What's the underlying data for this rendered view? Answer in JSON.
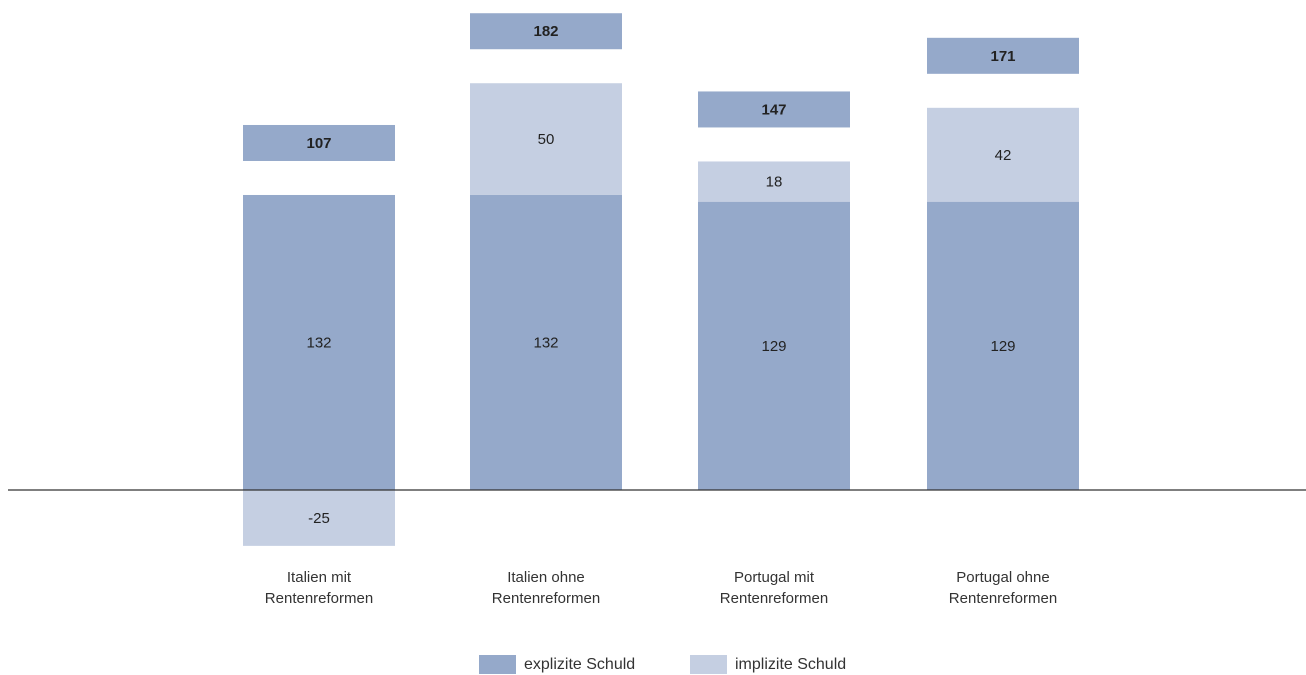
{
  "chart_data": {
    "type": "bar",
    "stacked": true,
    "categories": [
      [
        "Italien mit",
        "Rentenreformen"
      ],
      [
        "Italien ohne",
        "Rentenreformen"
      ],
      [
        "Portugal mit",
        "Rentenreformen"
      ],
      [
        "Portugal ohne",
        "Rentenreformen"
      ]
    ],
    "series": [
      {
        "name": "explizite Schuld",
        "values": [
          132,
          132,
          129,
          129
        ],
        "color": "#95a9ca"
      },
      {
        "name": "implizite Schuld",
        "values": [
          -25,
          50,
          18,
          42
        ],
        "color": "#c5cfe2"
      }
    ],
    "totals": [
      107,
      182,
      147,
      171
    ],
    "totals_color": "#95a9ca",
    "ylim": [
      -25,
      182
    ],
    "grid": false,
    "legend_position": "bottom-center",
    "axis_line_color": "#333333"
  }
}
